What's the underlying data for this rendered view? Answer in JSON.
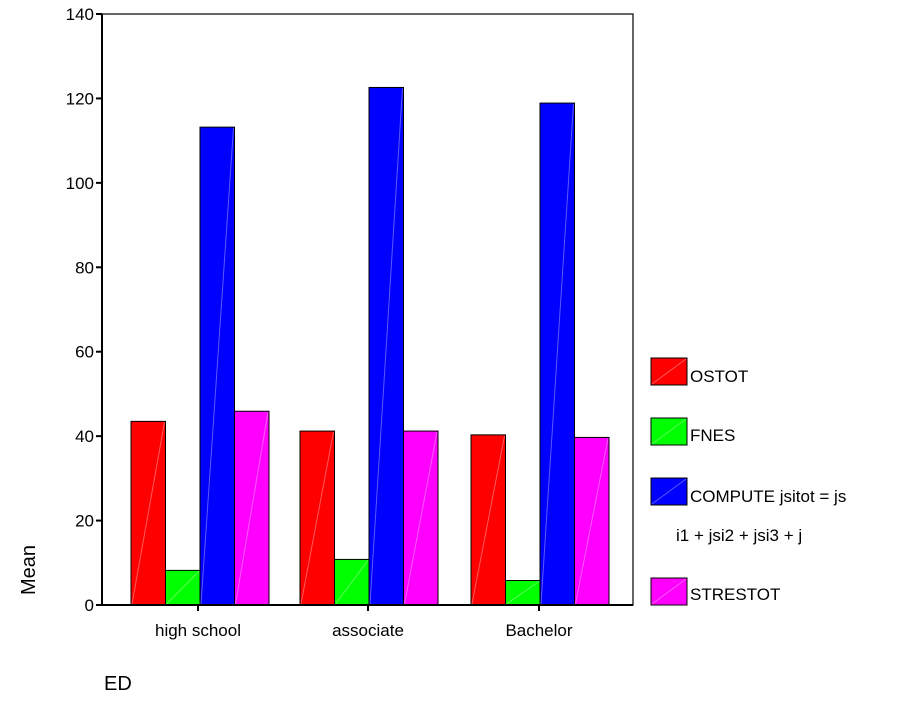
{
  "chart_data": {
    "type": "bar",
    "title": "",
    "xlabel": "ED",
    "ylabel": "Mean",
    "ylim": [
      0,
      140
    ],
    "yticks": [
      0,
      20,
      40,
      60,
      80,
      100,
      120,
      140
    ],
    "categories": [
      "high school",
      "associate",
      "Bachelor"
    ],
    "series": [
      {
        "name": "OSTOT",
        "color": "#ff0000",
        "values": [
          43.5,
          41.2,
          40.3
        ]
      },
      {
        "name": "FNES",
        "color": "#00ff00",
        "values": [
          8.2,
          10.8,
          5.8
        ]
      },
      {
        "name": "COMPUTE  jsitot = jsi1 + jsi2 + jsi3 + j",
        "color": "#0000ff",
        "values": [
          113.2,
          122.6,
          118.9
        ]
      },
      {
        "name": "STRESTOT",
        "color": "#ff00ff",
        "values": [
          45.9,
          41.2,
          39.7
        ]
      }
    ],
    "legend": {
      "position": "right",
      "lines": [
        [
          "OSTOT"
        ],
        [
          "FNES"
        ],
        [
          "COMPUTE  jsitot = js",
          "i1 + jsi2 + jsi3 + j"
        ],
        [
          "STRESTOT"
        ]
      ]
    },
    "grid": false
  }
}
